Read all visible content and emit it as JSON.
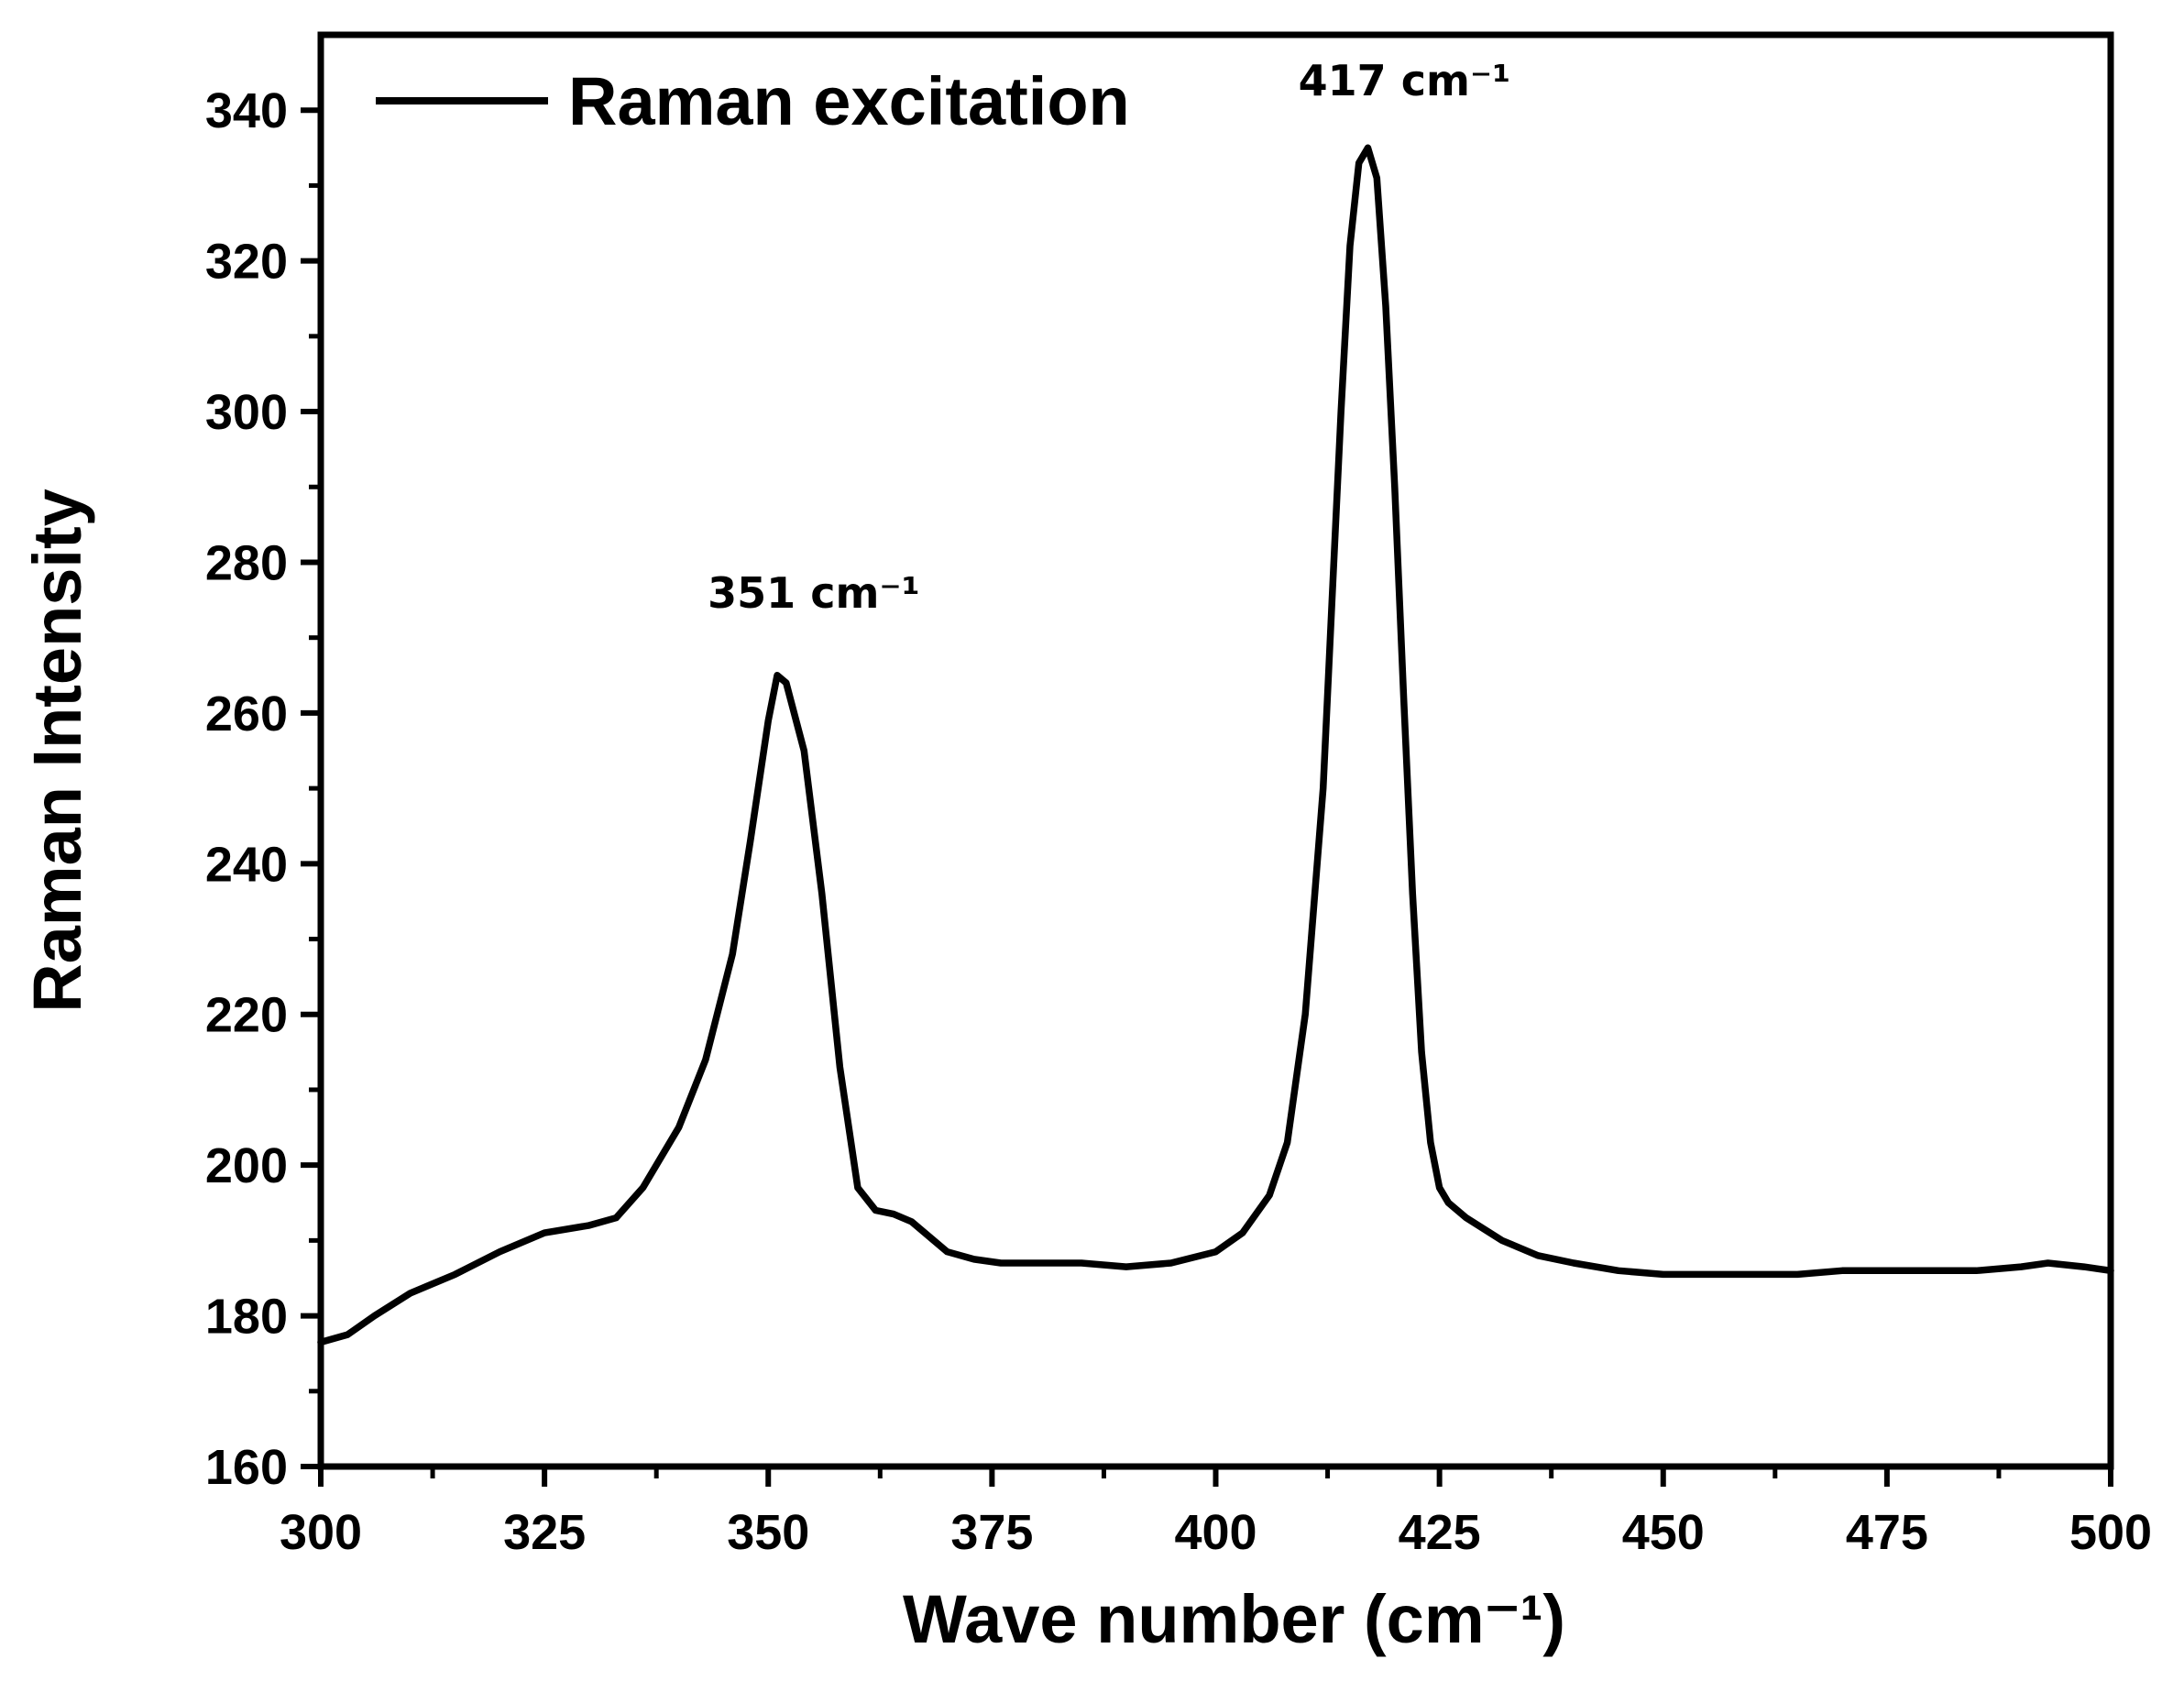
{
  "chart_data": {
    "type": "line",
    "title": "",
    "xlabel": "Wave number (cm⁻¹)",
    "ylabel": "Raman Intensity",
    "xlim": [
      300,
      500
    ],
    "ylim": [
      160,
      350
    ],
    "xticks": [
      300,
      325,
      350,
      375,
      400,
      425,
      450,
      475,
      500
    ],
    "yticks": [
      160,
      180,
      200,
      220,
      240,
      260,
      280,
      300,
      320,
      340
    ],
    "grid": false,
    "legend_position": "top-left",
    "series": [
      {
        "name": "Raman excitation",
        "color": "#000000",
        "x": [
          300,
          303,
          306,
          310,
          315,
          320,
          325,
          330,
          333,
          336,
          340,
          343,
          346,
          348,
          350,
          351,
          352,
          354,
          356,
          358,
          360,
          362,
          364,
          366,
          368,
          370,
          373,
          376,
          380,
          385,
          390,
          395,
          400,
          403,
          406,
          408,
          410,
          412,
          413,
          414,
          415,
          416,
          417,
          418,
          419,
          420,
          421,
          422,
          423,
          424,
          425,
          426,
          428,
          432,
          436,
          440,
          445,
          450,
          455,
          460,
          465,
          470,
          475,
          480,
          485,
          490,
          493,
          497,
          500
        ],
        "y": [
          176.5,
          177.5,
          180,
          183,
          185.5,
          188.5,
          191,
          192,
          193,
          197,
          205,
          214,
          228,
          243,
          259,
          265,
          264,
          255,
          236,
          213,
          197,
          194,
          193.5,
          192.5,
          190.5,
          188.5,
          187.5,
          187,
          187,
          187,
          186.5,
          187,
          188.5,
          191,
          196,
          203,
          220,
          250,
          275,
          300,
          322,
          333,
          335,
          331,
          314,
          290,
          262,
          236,
          215,
          203,
          197,
          195,
          193,
          190,
          188,
          187,
          186,
          185.5,
          185.5,
          185.5,
          185.5,
          186,
          186,
          186,
          186,
          186.5,
          187,
          186.5,
          186
        ]
      }
    ],
    "annotations": [
      {
        "text": "351 cm⁻¹",
        "x": 351,
        "y": 274
      },
      {
        "text": "417 cm⁻¹",
        "x": 417,
        "y": 342
      }
    ]
  }
}
